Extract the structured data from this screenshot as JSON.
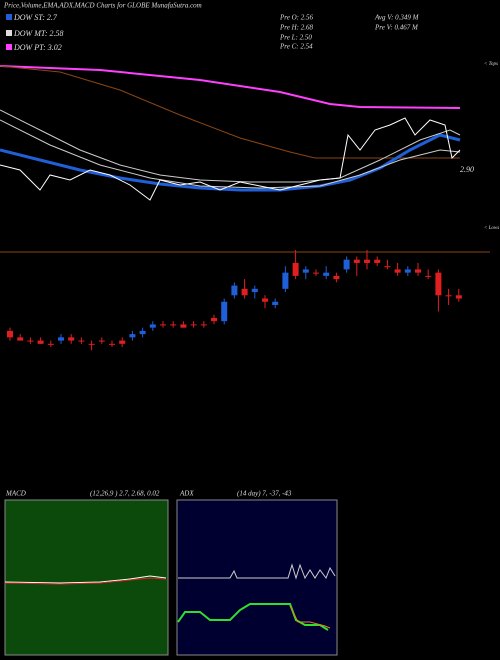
{
  "header": {
    "title": "Price,Volume,EMA,ADX,MACD Charts for GLOBE MunafaSutra.com"
  },
  "legend": [
    {
      "label": "DOW ST: 2.7",
      "color": "#1f5fd8"
    },
    {
      "label": "DOW MT: 2.58",
      "color": "#dddddd"
    },
    {
      "label": "DOW PT: 3.02",
      "color": "#ff40ff"
    }
  ],
  "stats": {
    "pre_o": "Pre   O: 2.56",
    "pre_h": "Pre   H: 2.68",
    "pre_l": "Pre   L: 2.50",
    "pre_c": "Pre   C: 2.54",
    "avg_v": "Avg V: 0.349 M",
    "pre_v": "Pre   V: 0.467 M"
  },
  "price_label": "2.90",
  "tops": "< Tops",
  "lows": "< Lows",
  "candles": {
    "ylim": [
      2.36,
      2.7
    ],
    "up_color": "#1f5fd8",
    "down_color": "#e02020",
    "ohlc": [
      [
        2.45,
        2.46,
        2.42,
        2.43
      ],
      [
        2.43,
        2.44,
        2.42,
        2.42
      ],
      [
        2.42,
        2.43,
        2.41,
        2.42
      ],
      [
        2.42,
        2.43,
        2.41,
        2.41
      ],
      [
        2.41,
        2.42,
        2.4,
        2.41
      ],
      [
        2.42,
        2.44,
        2.41,
        2.43
      ],
      [
        2.43,
        2.44,
        2.41,
        2.42
      ],
      [
        2.42,
        2.43,
        2.41,
        2.42
      ],
      [
        2.41,
        2.42,
        2.39,
        2.41
      ],
      [
        2.42,
        2.43,
        2.41,
        2.42
      ],
      [
        2.41,
        2.42,
        2.4,
        2.41
      ],
      [
        2.42,
        2.43,
        2.4,
        2.41
      ],
      [
        2.43,
        2.45,
        2.42,
        2.44
      ],
      [
        2.44,
        2.46,
        2.43,
        2.45
      ],
      [
        2.46,
        2.48,
        2.45,
        2.47
      ],
      [
        2.47,
        2.48,
        2.46,
        2.47
      ],
      [
        2.47,
        2.48,
        2.46,
        2.47
      ],
      [
        2.47,
        2.48,
        2.46,
        2.46
      ],
      [
        2.47,
        2.48,
        2.46,
        2.47
      ],
      [
        2.47,
        2.48,
        2.46,
        2.47
      ],
      [
        2.49,
        2.5,
        2.47,
        2.48
      ],
      [
        2.48,
        2.55,
        2.47,
        2.54
      ],
      [
        2.56,
        2.6,
        2.55,
        2.59
      ],
      [
        2.58,
        2.61,
        2.55,
        2.56
      ],
      [
        2.57,
        2.59,
        2.55,
        2.58
      ],
      [
        2.55,
        2.56,
        2.52,
        2.54
      ],
      [
        2.53,
        2.55,
        2.52,
        2.54
      ],
      [
        2.58,
        2.65,
        2.57,
        2.63
      ],
      [
        2.66,
        2.7,
        2.61,
        2.62
      ],
      [
        2.63,
        2.65,
        2.61,
        2.64
      ],
      [
        2.63,
        2.64,
        2.62,
        2.63
      ],
      [
        2.62,
        2.65,
        2.61,
        2.63
      ],
      [
        2.62,
        2.63,
        2.6,
        2.61
      ],
      [
        2.64,
        2.68,
        2.63,
        2.67
      ],
      [
        2.67,
        2.68,
        2.62,
        2.66
      ],
      [
        2.67,
        2.7,
        2.64,
        2.66
      ],
      [
        2.67,
        2.68,
        2.65,
        2.66
      ],
      [
        2.65,
        2.67,
        2.64,
        2.65
      ],
      [
        2.64,
        2.66,
        2.62,
        2.63
      ],
      [
        2.63,
        2.65,
        2.62,
        2.64
      ],
      [
        2.64,
        2.66,
        2.62,
        2.63
      ],
      [
        2.62,
        2.64,
        2.61,
        2.62
      ],
      [
        2.63,
        2.64,
        2.51,
        2.56
      ],
      [
        2.56,
        2.58,
        2.53,
        2.56
      ],
      [
        2.56,
        2.58,
        2.54,
        2.55
      ]
    ]
  },
  "macd": {
    "label": "MACD",
    "params": "(12,26,9 ) 2.7, 2.68, 0.02"
  },
  "adx": {
    "label": "ADX",
    "params": "(14 day) 7, -37, -43"
  }
}
